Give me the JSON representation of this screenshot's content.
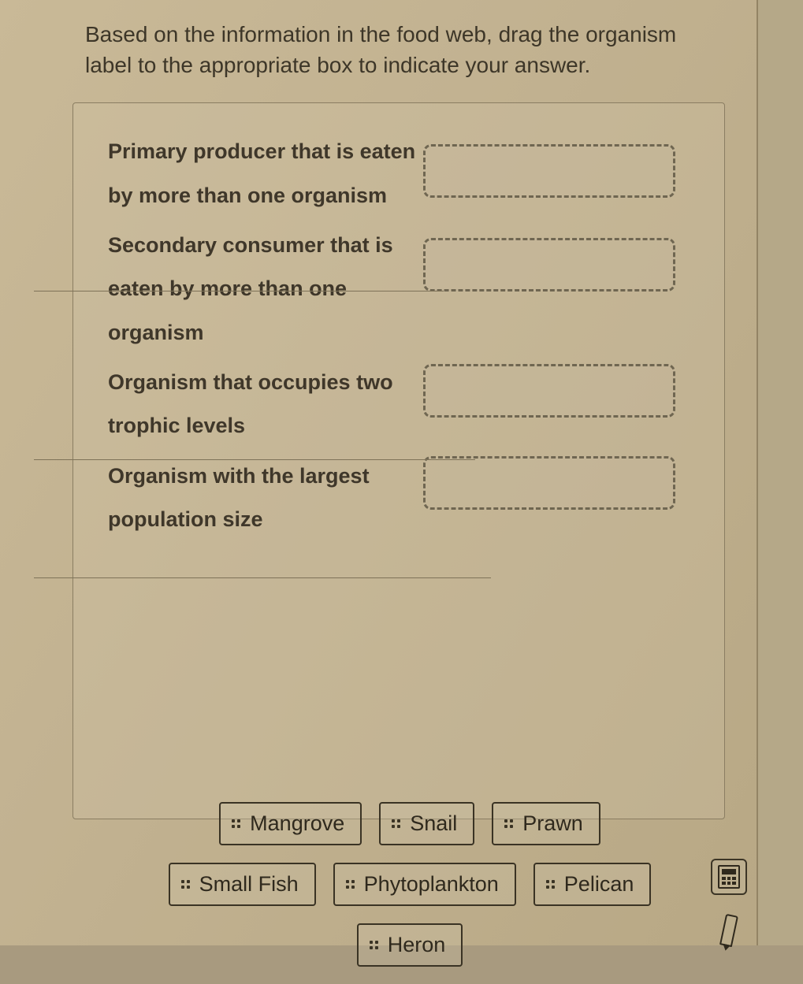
{
  "instruction": "Based on the information in the food web, drag the organism label to the appropriate box to indicate your answer.",
  "prompts": [
    "Primary producer that is eaten by more than one organism",
    "Secondary consumer that is eaten by more than one organism",
    "Organism that occupies two trophic levels",
    "Organism with the largest population size"
  ],
  "chips": {
    "row1": [
      "Mangrove",
      "Snail",
      "Prawn"
    ],
    "row2": [
      "Small Fish",
      "Phytoplankton",
      "Pelican"
    ],
    "row3": [
      "Heron"
    ]
  },
  "colors": {
    "page_bg": "#c2b291",
    "text": "#3d3628",
    "border": "#3a3324",
    "dash": "#6f6651"
  }
}
